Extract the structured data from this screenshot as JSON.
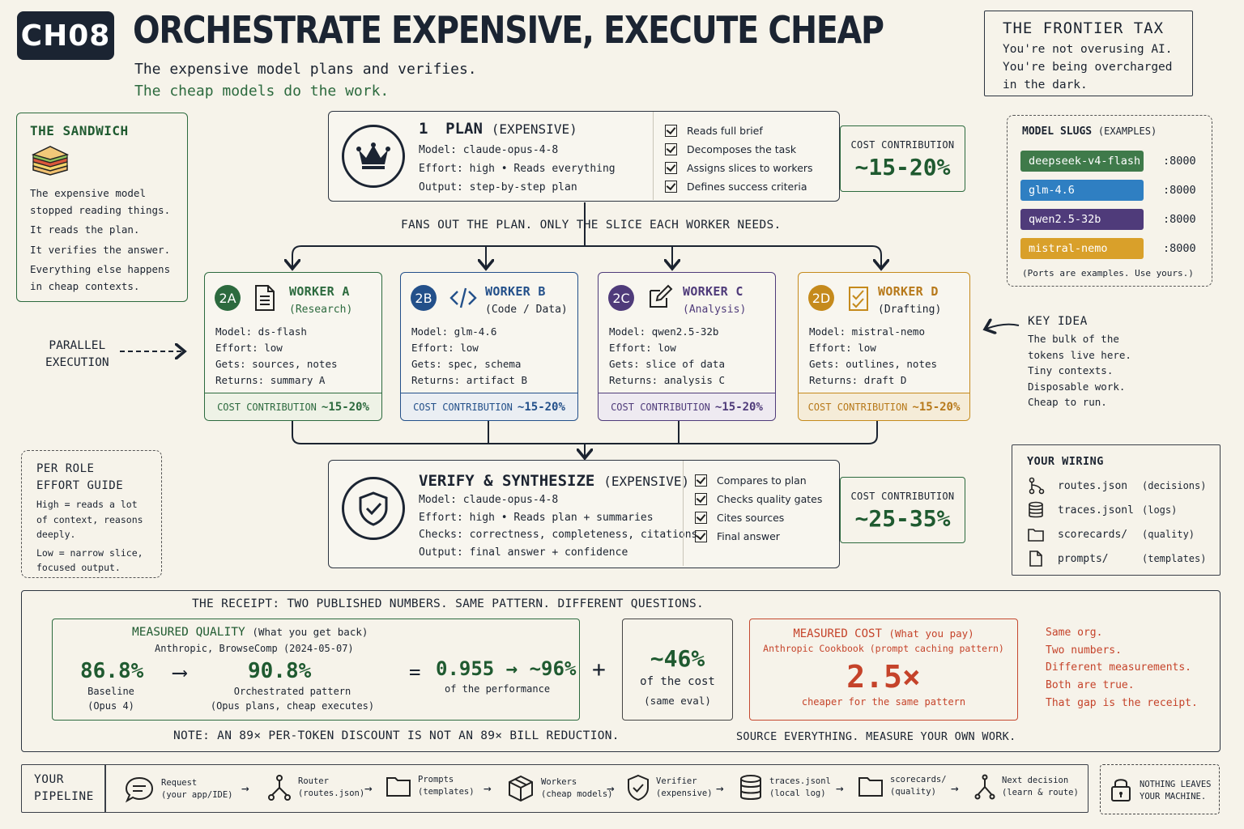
{
  "header": {
    "chapter": "CH08",
    "title": "ORCHESTRATE EXPENSIVE, EXECUTE CHEAP",
    "subtitle1": "The expensive model plans and verifies.",
    "subtitle2": "The cheap models do the work."
  },
  "frontier": {
    "title": "THE FRONTIER TAX",
    "lines": [
      "You're not overusing AI.",
      "You're being overcharged",
      "in the dark."
    ]
  },
  "sandwich": {
    "title": "THE SANDWICH",
    "lines": [
      "The expensive model",
      "stopped reading things.",
      "It reads the plan.",
      "It verifies the answer.",
      "Everything else happens",
      "in cheap contexts."
    ]
  },
  "plan": {
    "num": "1",
    "name": "PLAN",
    "tier": "(EXPENSIVE)",
    "lines": [
      "Model: claude-opus-4-8",
      "Effort: high • Reads everything",
      "Output: step-by-step plan"
    ],
    "checks": [
      "Reads full brief",
      "Decomposes the task",
      "Assigns slices to workers",
      "Defines success criteria"
    ],
    "cost_label": "COST CONTRIBUTION",
    "cost_value": "~15-20%"
  },
  "fans": "FANS OUT THE PLAN. ONLY THE SLICE EACH WORKER NEEDS.",
  "workers": [
    {
      "badge": "2A",
      "name": "WORKER A",
      "role": "(Research)",
      "color": "#2c6a3e",
      "icon": "document-icon",
      "lines": [
        "Model: ds-flash",
        "Effort: low",
        "Gets: sources, notes",
        "Returns: summary A"
      ],
      "cost_label": "COST CONTRIBUTION",
      "cost_value": "~15-20%"
    },
    {
      "badge": "2B",
      "name": "WORKER B",
      "role": "(Code / Data)",
      "color": "#23508a",
      "icon": "code-icon",
      "lines": [
        "Model: glm-4.6",
        "Effort: low",
        "Gets: spec, schema",
        "Returns: artifact B"
      ],
      "cost_label": "COST CONTRIBUTION",
      "cost_value": "~15-20%"
    },
    {
      "badge": "2C",
      "name": "WORKER C",
      "role": "(Analysis)",
      "color": "#4f3b7a",
      "icon": "edit-icon",
      "lines": [
        "Model: qwen2.5-32b",
        "Effort: low",
        "Gets: slice of data",
        "Returns: analysis C"
      ],
      "cost_label": "COST CONTRIBUTION",
      "cost_value": "~15-20%"
    },
    {
      "badge": "2D",
      "name": "WORKER D",
      "role": "(Drafting)",
      "color": "#c58a1c",
      "icon": "checklist-icon",
      "lines": [
        "Model: mistral-nemo",
        "Effort: low",
        "Gets: outlines, notes",
        "Returns: draft D"
      ],
      "cost_label": "COST CONTRIBUTION",
      "cost_value": "~15-20%"
    }
  ],
  "parallel": [
    "PARALLEL",
    "EXECUTION"
  ],
  "key_idea": {
    "title": "KEY IDEA",
    "lines": [
      "The bulk of the",
      "tokens live here.",
      "Tiny contexts.",
      "Disposable work.",
      "Cheap to run."
    ]
  },
  "slugs": {
    "title": "MODEL SLUGS",
    "title_note": "(EXAMPLES)",
    "items": [
      {
        "name": "deepseek-v4-flash",
        "port": ":8000",
        "color": "#3f7a4a"
      },
      {
        "name": "glm-4.6",
        "port": ":8000",
        "color": "#2f7fc2"
      },
      {
        "name": "qwen2.5-32b",
        "port": ":8000",
        "color": "#4f3b7a"
      },
      {
        "name": "mistral-nemo",
        "port": ":8000",
        "color": "#d9a02a"
      }
    ],
    "note": "(Ports are examples. Use yours.)"
  },
  "effort": {
    "title": [
      "PER ROLE",
      "EFFORT GUIDE"
    ],
    "lines": [
      "High = reads a lot",
      "of context, reasons",
      "deeply.",
      "",
      "Low = narrow slice,",
      "focused output."
    ]
  },
  "verify": {
    "name": "VERIFY & SYNTHESIZE",
    "tier": "(EXPENSIVE)",
    "lines": [
      "Model: claude-opus-4-8",
      "Effort: high • Reads plan + summaries",
      "Checks: correctness, completeness, citations",
      "Output: final answer + confidence"
    ],
    "checks": [
      "Compares to plan",
      "Checks quality gates",
      "Cites sources",
      "Final answer"
    ],
    "cost_label": "COST CONTRIBUTION",
    "cost_value": "~25-35%"
  },
  "wiring": {
    "title": "YOUR WIRING",
    "items": [
      {
        "file": "routes.json",
        "desc": "(decisions)",
        "icon": "fork-icon"
      },
      {
        "file": "traces.jsonl",
        "desc": "(logs)",
        "icon": "database-icon"
      },
      {
        "file": "scorecards/",
        "desc": "(quality)",
        "icon": "folder-icon"
      },
      {
        "file": "prompts/",
        "desc": "(templates)",
        "icon": "file-icon"
      }
    ]
  },
  "receipt": {
    "title": "THE RECEIPT: TWO PUBLISHED NUMBERS. SAME PATTERN. DIFFERENT QUESTIONS.",
    "quality_title": "MEASURED QUALITY",
    "quality_sub": "(What you get back)",
    "quality_source": "Anthropic, BrowseComp (2024-05-07)",
    "baseline_value": "86.8%",
    "baseline_label": [
      "Baseline",
      "(Opus 4)"
    ],
    "orch_value": "90.8%",
    "orch_label": [
      "Orchestrated pattern",
      "(Opus plans, cheap executes)"
    ],
    "ratio_value": "0.955 → ~96%",
    "ratio_label": "of the performance",
    "cost_pct": "~46%",
    "cost_pct_label": [
      "of the cost",
      "(same eval)"
    ],
    "cost_title": "MEASURED COST",
    "cost_sub": "(What you pay)",
    "cost_source": "Anthropic Cookbook (prompt caching pattern)",
    "cost_value": "2.5×",
    "cost_label": "cheaper for the same pattern",
    "red_lines": [
      "Same org.",
      "Two numbers.",
      "Different measurements.",
      "Both are true.",
      "That gap is the receipt."
    ],
    "note": "NOTE: AN 89× PER-TOKEN DISCOUNT IS NOT AN 89× BILL REDUCTION.",
    "source_note": "SOURCE EVERYTHING. MEASURE YOUR OWN WORK."
  },
  "pipeline": {
    "label": [
      "YOUR",
      "PIPELINE"
    ],
    "steps": [
      {
        "name": "Request",
        "sub": "(your app/IDE)",
        "icon": "chat-icon"
      },
      {
        "name": "Router",
        "sub": "(routes.json)",
        "icon": "fork-icon"
      },
      {
        "name": "Prompts",
        "sub": "(templates)",
        "icon": "folder-icon"
      },
      {
        "name": "Workers",
        "sub": "(cheap models)",
        "icon": "cube-icon"
      },
      {
        "name": "Verifier",
        "sub": "(expensive)",
        "icon": "shield-icon"
      },
      {
        "name": "traces.jsonl",
        "sub": "(local log)",
        "icon": "database-icon"
      },
      {
        "name": "scorecards/",
        "sub": "(quality)",
        "icon": "folder-icon"
      },
      {
        "name": "Next decision",
        "sub": "(learn & route)",
        "icon": "fork-icon"
      }
    ],
    "nothing": [
      "NOTHING LEAVES",
      "YOUR MACHINE."
    ]
  }
}
